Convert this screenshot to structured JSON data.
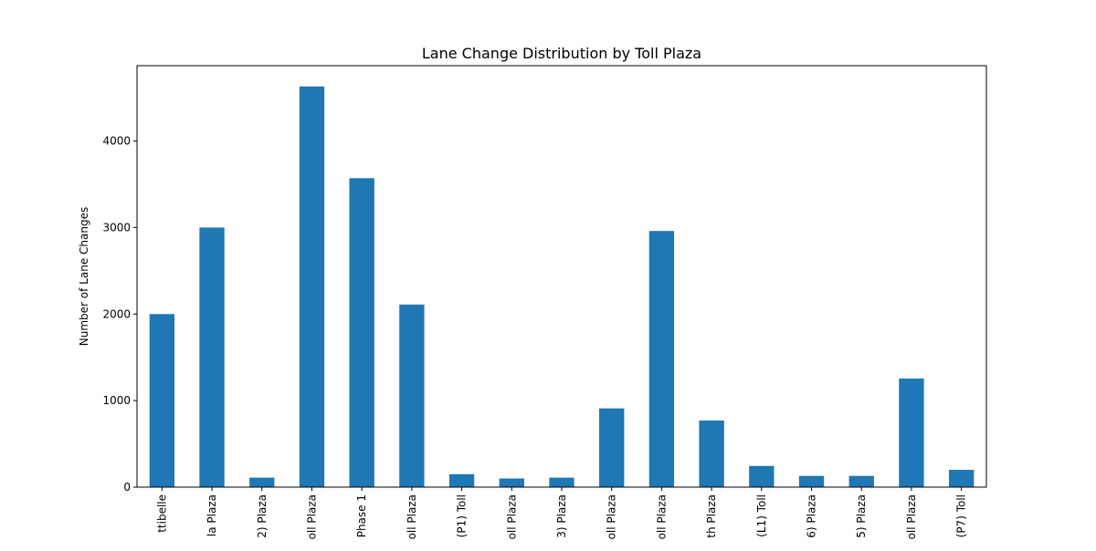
{
  "chart_data": {
    "type": "bar",
    "title": "Lane Change Distribution by Toll Plaza",
    "xlabel": "",
    "ylabel": "Number of Lane Changes",
    "ylim": [
      0,
      4870
    ],
    "yticks": [
      0,
      1000,
      2000,
      3000,
      4000
    ],
    "grid": false,
    "legend": "none",
    "bar_color": "#1f77b4",
    "categories": [
      "ttibelle",
      "la Plaza",
      "2) Plaza",
      "oll Plaza",
      "Phase 1",
      "oll Plaza",
      "(P1) Toll",
      "oll Plaza",
      "3) Plaza",
      "oll Plaza",
      "oll Plaza",
      "th Plaza",
      "(L1) Toll",
      "6) Plaza",
      "5) Plaza",
      "oll Plaza",
      "(P7) Toll"
    ],
    "values": [
      2000,
      3000,
      110,
      4630,
      3570,
      2110,
      150,
      100,
      110,
      910,
      2960,
      770,
      245,
      130,
      130,
      1255,
      200
    ]
  }
}
